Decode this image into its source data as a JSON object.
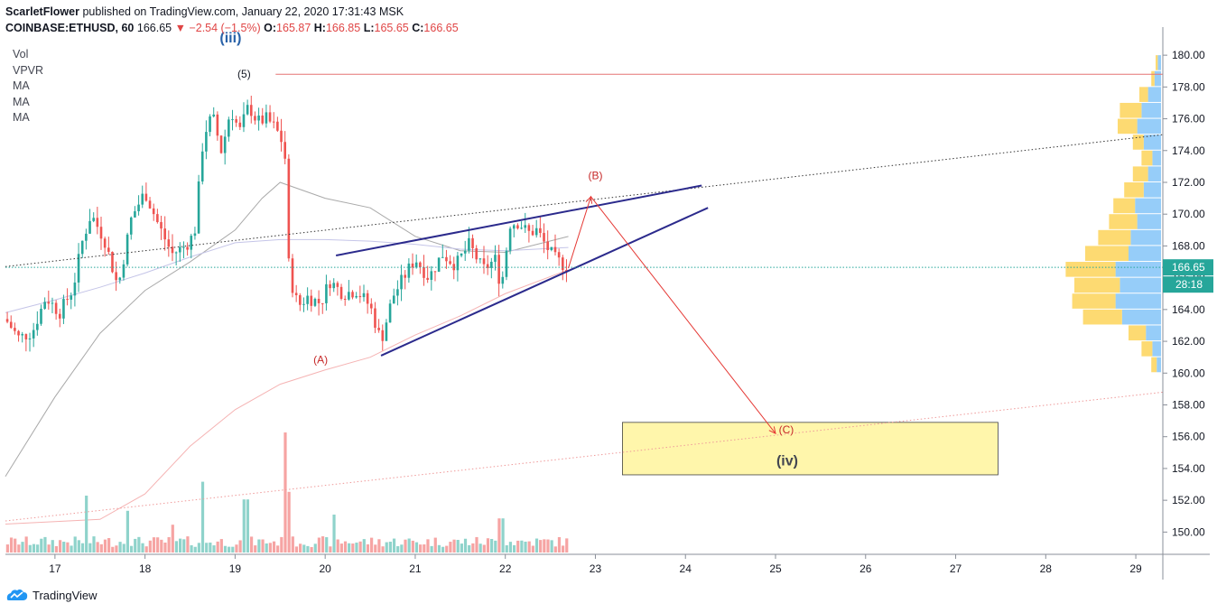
{
  "header": {
    "author": "ScarletFlower",
    "published_text": "published on TradingView.com, January 22, 2020 17:31:43 MSK",
    "symbol": "COINBASE:ETHUSD, 60",
    "last": "166.65",
    "change": "−2.54 (−1.5%)",
    "open_label": "O:",
    "open": "165.87",
    "high_label": "H:",
    "high": "166.85",
    "low_label": "L:",
    "low": "165.65",
    "close_label": "C:",
    "close": "166.65"
  },
  "indicators": [
    "Vol",
    "VPVR",
    "MA",
    "MA",
    "MA"
  ],
  "footer": {
    "brand": "TradingView"
  },
  "colors": {
    "up": "#26a69a",
    "down": "#ef5350",
    "vol_up": "#8fd3cb",
    "vol_down": "#f6a4a3",
    "channel": "#2b2a8c",
    "annotation_red": "#e53935",
    "target_zone": "#fff59d",
    "target_zone_border": "#212121",
    "price_tag": "#26a69a"
  },
  "chart_data": {
    "type": "candlestick",
    "price_axis": {
      "range": [
        148.6,
        181.2
      ],
      "ticks": [
        "150.00",
        "152.00",
        "154.00",
        "156.00",
        "158.00",
        "160.00",
        "162.00",
        "164.00",
        "166.00",
        "168.00",
        "170.00",
        "172.00",
        "174.00",
        "176.00",
        "178.00",
        "180.00"
      ]
    },
    "time_axis": {
      "range": [
        16.45,
        29.3
      ],
      "ticks": [
        {
          "x": 17,
          "label": "17"
        },
        {
          "x": 18,
          "label": "18"
        },
        {
          "x": 19,
          "label": "19"
        },
        {
          "x": 20,
          "label": "20"
        },
        {
          "x": 21,
          "label": "21"
        },
        {
          "x": 22,
          "label": "22"
        },
        {
          "x": 23,
          "label": "23"
        },
        {
          "x": 24,
          "label": "24"
        },
        {
          "x": 25,
          "label": "25"
        },
        {
          "x": 26,
          "label": "26"
        },
        {
          "x": 27,
          "label": "27"
        },
        {
          "x": 28,
          "label": "28"
        },
        {
          "x": 29,
          "label": "29"
        }
      ]
    },
    "last_price_tag": "166.65",
    "countdown_tag": "28:18",
    "price_path": [
      [
        16.45,
        163.4
      ],
      [
        16.6,
        162.2
      ],
      [
        16.75,
        162.6
      ],
      [
        16.9,
        164.8
      ],
      [
        17.05,
        163.8
      ],
      [
        17.2,
        165.3
      ],
      [
        17.3,
        168.2
      ],
      [
        17.4,
        170.0
      ],
      [
        17.55,
        168.4
      ],
      [
        17.7,
        165.4
      ],
      [
        17.85,
        169.8
      ],
      [
        18.0,
        171.4
      ],
      [
        18.15,
        169.3
      ],
      [
        18.3,
        167.5
      ],
      [
        18.45,
        168.0
      ],
      [
        18.55,
        168.8
      ],
      [
        18.65,
        175.0
      ],
      [
        18.75,
        176.2
      ],
      [
        18.85,
        173.9
      ],
      [
        18.95,
        176.6
      ],
      [
        19.05,
        175.2
      ],
      [
        19.15,
        176.8
      ],
      [
        19.25,
        175.8
      ],
      [
        19.35,
        176.0
      ],
      [
        19.45,
        175.4
      ],
      [
        19.55,
        174.2
      ],
      [
        19.6,
        166.2
      ],
      [
        19.7,
        164.2
      ],
      [
        19.8,
        164.8
      ],
      [
        19.95,
        164.4
      ],
      [
        20.05,
        165.8
      ],
      [
        20.2,
        165.0
      ],
      [
        20.35,
        165.2
      ],
      [
        20.5,
        164.2
      ],
      [
        20.62,
        162.0
      ],
      [
        20.75,
        164.8
      ],
      [
        20.9,
        166.3
      ],
      [
        21.0,
        167.2
      ],
      [
        21.15,
        166.0
      ],
      [
        21.3,
        167.5
      ],
      [
        21.45,
        166.8
      ],
      [
        21.6,
        168.1
      ],
      [
        21.75,
        166.5
      ],
      [
        21.9,
        167.2
      ],
      [
        21.95,
        165.2
      ],
      [
        22.05,
        169.4
      ],
      [
        22.15,
        169.5
      ],
      [
        22.25,
        168.8
      ],
      [
        22.35,
        169.0
      ],
      [
        22.45,
        168.0
      ],
      [
        22.55,
        167.2
      ],
      [
        22.65,
        166.8
      ],
      [
        22.72,
        166.6
      ]
    ],
    "moving_averages": [
      {
        "color": "#a9a9a9",
        "points": [
          [
            16.45,
            153.5
          ],
          [
            17.0,
            158.5
          ],
          [
            17.5,
            162.5
          ],
          [
            18.0,
            165.2
          ],
          [
            18.5,
            167.0
          ],
          [
            19.0,
            169.0
          ],
          [
            19.3,
            171.0
          ],
          [
            19.5,
            172.0
          ],
          [
            20.0,
            171.0
          ],
          [
            20.5,
            170.4
          ],
          [
            21.0,
            168.6
          ],
          [
            21.5,
            167.7
          ],
          [
            22.0,
            167.6
          ],
          [
            22.7,
            168.6
          ]
        ]
      },
      {
        "color": "#c5c5e8",
        "points": [
          [
            16.45,
            163.8
          ],
          [
            17.0,
            164.6
          ],
          [
            17.5,
            165.4
          ],
          [
            18.0,
            166.3
          ],
          [
            18.5,
            167.3
          ],
          [
            19.0,
            168.2
          ],
          [
            19.5,
            168.4
          ],
          [
            20.0,
            168.4
          ],
          [
            20.5,
            168.3
          ],
          [
            21.0,
            168.1
          ],
          [
            21.5,
            167.8
          ],
          [
            22.0,
            167.7
          ],
          [
            22.7,
            167.9
          ]
        ]
      },
      {
        "color": "#f5b3b3",
        "points": [
          [
            16.45,
            150.5
          ],
          [
            17.5,
            150.8
          ],
          [
            18.0,
            152.4
          ],
          [
            18.5,
            155.4
          ],
          [
            19.0,
            157.7
          ],
          [
            19.5,
            159.3
          ],
          [
            20.0,
            160.2
          ],
          [
            20.5,
            161.0
          ],
          [
            21.0,
            162.4
          ],
          [
            21.5,
            163.6
          ],
          [
            22.0,
            165.0
          ],
          [
            22.7,
            166.5
          ]
        ]
      }
    ],
    "trendlines": [
      {
        "style": "dotted",
        "color": "#333333",
        "from": [
          16.45,
          166.7
        ],
        "to": [
          29.3,
          175.0
        ]
      },
      {
        "style": "dotted",
        "color": "#ef9a9a",
        "from": [
          16.45,
          150.7
        ],
        "to": [
          29.3,
          158.8
        ]
      },
      {
        "style": "solid",
        "color": "#2b2a8c",
        "from": [
          20.12,
          167.4
        ],
        "to": [
          24.18,
          171.8
        ]
      },
      {
        "style": "solid",
        "color": "#2b2a8c",
        "from": [
          20.62,
          161.1
        ],
        "to": [
          24.25,
          170.4
        ]
      },
      {
        "style": "solid",
        "color": "#e57373",
        "from": [
          19.45,
          178.8
        ],
        "to": [
          29.3,
          178.8
        ]
      }
    ],
    "projection": [
      [
        22.7,
        166.6
      ],
      [
        22.95,
        171.1
      ],
      [
        25.0,
        156.2
      ]
    ],
    "target_zone": {
      "x": [
        23.3,
        27.47
      ],
      "y": [
        153.6,
        156.9
      ]
    },
    "annotations": [
      {
        "text": "(5)",
        "x": 19.1,
        "y": 178.6,
        "color": "#131722"
      },
      {
        "text": "(A)",
        "x": 19.95,
        "y": 160.6,
        "color": "#c62828"
      },
      {
        "text": "(B)",
        "x": 23.0,
        "y": 172.2,
        "color": "#c62828"
      },
      {
        "text": "(C)",
        "x": 25.12,
        "y": 156.2,
        "color": "#c62828"
      },
      {
        "text": "(iii)",
        "x": 18.95,
        "y": 180.8,
        "color": "#2962a8"
      },
      {
        "text": "(iv)",
        "x": 25.13,
        "y": 154.2,
        "color": "#434651"
      }
    ],
    "volume_profile": [
      {
        "price": 179.5,
        "up": 3,
        "down": 2
      },
      {
        "price": 178.5,
        "up": 6,
        "down": 3
      },
      {
        "price": 177.5,
        "up": 12,
        "down": 8
      },
      {
        "price": 176.5,
        "up": 18,
        "down": 20
      },
      {
        "price": 175.5,
        "up": 22,
        "down": 18
      },
      {
        "price": 174.5,
        "up": 16,
        "down": 10
      },
      {
        "price": 173.5,
        "up": 8,
        "down": 10
      },
      {
        "price": 172.5,
        "up": 12,
        "down": 14
      },
      {
        "price": 171.5,
        "up": 16,
        "down": 18
      },
      {
        "price": 170.5,
        "up": 24,
        "down": 20
      },
      {
        "price": 169.5,
        "up": 22,
        "down": 26
      },
      {
        "price": 168.5,
        "up": 28,
        "down": 30
      },
      {
        "price": 167.5,
        "up": 30,
        "down": 40
      },
      {
        "price": 166.5,
        "up": 42,
        "down": 46
      },
      {
        "price": 165.5,
        "up": 38,
        "down": 42
      },
      {
        "price": 164.5,
        "up": 42,
        "down": 40
      },
      {
        "price": 163.5,
        "up": 36,
        "down": 36
      },
      {
        "price": 162.5,
        "up": 14,
        "down": 16
      },
      {
        "price": 161.5,
        "up": 8,
        "down": 10
      },
      {
        "price": 160.5,
        "up": 4,
        "down": 5
      }
    ],
    "volume_spikes": [
      [
        17.35,
        0.45
      ],
      [
        17.8,
        0.33
      ],
      [
        18.3,
        0.22
      ],
      [
        18.65,
        0.56
      ],
      [
        19.12,
        0.42
      ],
      [
        19.55,
        0.95
      ],
      [
        19.6,
        0.48
      ],
      [
        20.1,
        0.3
      ],
      [
        21.95,
        0.27
      ]
    ]
  }
}
